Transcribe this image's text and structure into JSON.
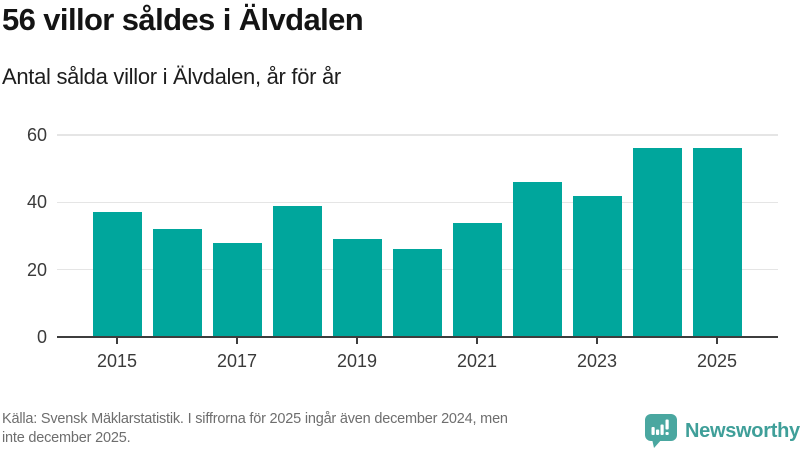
{
  "header": {
    "title": "56 villor såldes i Älvdalen",
    "subtitle": "Antal sålda villor i Älvdalen, år för år"
  },
  "chart_data": {
    "type": "bar",
    "categories": [
      2015,
      2016,
      2017,
      2018,
      2019,
      2020,
      2021,
      2022,
      2023,
      2024,
      2025
    ],
    "values": [
      37,
      32,
      28,
      39,
      29,
      26,
      34,
      46,
      42,
      56,
      56
    ],
    "title": "56 villor såldes i Älvdalen",
    "subtitle": "Antal sålda villor i Älvdalen, år för år",
    "xlabel": "",
    "ylabel": "",
    "ylim": [
      0,
      60
    ],
    "yticks": [
      0,
      20,
      40,
      60
    ],
    "xtick_labels": [
      "2015",
      "2017",
      "2019",
      "2021",
      "2023",
      "2025"
    ],
    "grid": "horizontal-light",
    "legend": "none",
    "bar_color": "#00a69c"
  },
  "footer": {
    "source_line1": "Källa: Svensk Mäklarstatistik. I siffrorna för 2025 ingår även december 2024, men",
    "source_line2": "inte december 2025.",
    "brand_name": "Newsworthy",
    "brand_color": "#3f9f99",
    "logo_icon": "speech-bubble-bar-chart-icon"
  }
}
